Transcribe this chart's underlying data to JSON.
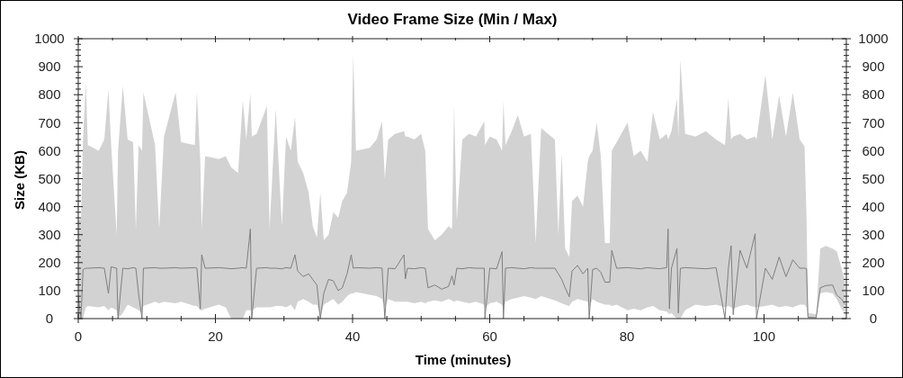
{
  "chart_data": {
    "type": "line",
    "title": "Video Frame Size (Min / Max)",
    "xlabel": "Time (minutes)",
    "ylabel": "Size (KB)",
    "x": [
      0,
      0.4,
      0.7,
      1.1,
      1.4,
      3.0,
      3.8,
      4.4,
      4.8,
      5.6,
      5.8,
      6.5,
      7.2,
      8.0,
      8.4,
      8.8,
      9.3,
      9.5,
      11.2,
      11.8,
      12.5,
      14.2,
      15.0,
      17.0,
      17.3,
      17.8,
      18.0,
      18.5,
      20.5,
      21.5,
      22.3,
      23.3,
      24.0,
      24.5,
      25.1,
      25.3,
      26.0,
      27.5,
      27.9,
      28.8,
      29.7,
      30.3,
      31.0,
      31.6,
      32.0,
      32.8,
      33.6,
      34.2,
      34.8,
      35.3,
      35.8,
      36.5,
      37.2,
      37.9,
      38.5,
      39.2,
      39.8,
      40.1,
      40.5,
      42.5,
      43.5,
      44.3,
      44.7,
      45.2,
      46.2,
      47.5,
      47.7,
      48.0,
      49.0,
      50.0,
      50.6,
      51.0,
      52.0,
      53.0,
      54.0,
      54.5,
      54.8,
      55.2,
      56.0,
      57.0,
      58.0,
      59.2,
      59.3,
      60.0,
      61.0,
      61.8,
      62.0,
      62.3,
      63.2,
      64.1,
      65.0,
      66.0,
      66.7,
      67.5,
      69.5,
      70.0,
      70.5,
      71.0,
      71.6,
      72.0,
      72.8,
      73.6,
      74.3,
      74.5,
      75.0,
      75.6,
      76.2,
      76.8,
      77.5,
      77.8,
      78.5,
      80.1,
      81.0,
      82.0,
      83.0,
      83.8,
      84.8,
      85.8,
      86.0,
      86.2,
      86.5,
      87.3,
      87.5,
      87.8,
      88.5,
      90.0,
      91.5,
      93.0,
      94.3,
      94.8,
      95.2,
      95.5,
      96.5,
      97.5,
      98.7,
      98.9,
      100.2,
      101.2,
      102.2,
      103.2,
      104.2,
      105.2,
      105.9,
      106.2,
      106.4,
      107.6,
      108.2,
      109.0,
      110.0,
      110.6,
      111.3,
      111.8
    ],
    "series": [
      {
        "color": "#7f7f7f",
        "values": [
          80,
          0,
          175,
          180,
          180,
          182,
          180,
          90,
          185,
          180,
          0,
          180,
          178,
          182,
          180,
          89,
          0,
          180,
          182,
          180,
          180,
          182,
          180,
          182,
          180,
          35,
          228,
          180,
          182,
          180,
          178,
          180,
          182,
          180,
          320,
          0,
          180,
          182,
          180,
          180,
          178,
          182,
          180,
          228,
          170,
          150,
          160,
          140,
          120,
          0,
          90,
          140,
          135,
          100,
          110,
          160,
          228,
          180,
          182,
          180,
          182,
          180,
          0,
          180,
          178,
          228,
          142,
          180,
          178,
          182,
          180,
          110,
          120,
          105,
          115,
          153,
          120,
          180,
          178,
          182,
          180,
          180,
          0,
          180,
          178,
          239,
          0,
          180,
          182,
          180,
          178,
          182,
          180,
          180,
          180,
          160,
          140,
          110,
          78,
          170,
          190,
          160,
          180,
          0,
          175,
          180,
          165,
          130,
          130,
          244,
          180,
          182,
          180,
          178,
          182,
          180,
          178,
          182,
          320,
          35,
          180,
          250,
          20,
          180,
          182,
          180,
          178,
          182,
          0,
          180,
          260,
          14,
          244,
          180,
          303,
          0,
          180,
          140,
          220,
          150,
          210,
          180,
          180,
          178,
          5,
          3,
          110,
          118,
          120,
          84,
          70,
          50
        ],
        "lower": [
          0,
          0,
          0,
          40,
          45,
          40,
          45,
          30,
          40,
          30,
          0,
          20,
          50,
          40,
          35,
          30,
          20,
          45,
          60,
          55,
          60,
          55,
          60,
          45,
          45,
          30,
          30,
          35,
          50,
          40,
          0,
          0,
          0,
          30,
          30,
          30,
          40,
          40,
          40,
          45,
          45,
          40,
          50,
          30,
          60,
          70,
          60,
          50,
          50,
          10,
          50,
          60,
          70,
          50,
          60,
          80,
          90,
          90,
          95,
          85,
          80,
          70,
          40,
          70,
          60,
          60,
          60,
          60,
          55,
          60,
          55,
          60,
          65,
          60,
          70,
          65,
          60,
          65,
          60,
          55,
          60,
          50,
          40,
          55,
          60,
          50,
          40,
          60,
          70,
          75,
          80,
          75,
          70,
          80,
          65,
          60,
          55,
          50,
          45,
          60,
          70,
          65,
          60,
          40,
          70,
          60,
          55,
          50,
          50,
          45,
          50,
          30,
          35,
          30,
          40,
          45,
          30,
          25,
          20,
          15,
          20,
          0,
          0,
          0,
          30,
          50,
          45,
          50,
          40,
          45,
          40,
          35,
          45,
          50,
          40,
          40,
          45,
          50,
          40,
          45,
          40,
          50,
          50,
          40,
          0,
          0,
          90,
          95,
          90,
          70,
          35,
          20
        ],
        "upper": [
          350,
          360,
          640,
          845,
          620,
          600,
          640,
          818,
          620,
          300,
          600,
          831,
          640,
          630,
          320,
          620,
          600,
          809,
          620,
          320,
          650,
          809,
          630,
          620,
          809,
          560,
          320,
          580,
          570,
          580,
          540,
          520,
          780,
          640,
          805,
          650,
          660,
          759,
          320,
          748,
          330,
          650,
          600,
          721,
          560,
          520,
          450,
          330,
          290,
          450,
          280,
          300,
          380,
          360,
          420,
          450,
          560,
          941,
          600,
          610,
          640,
          705,
          500,
          640,
          660,
          670,
          650,
          650,
          640,
          660,
          600,
          320,
          280,
          300,
          330,
          320,
          760,
          350,
          640,
          660,
          650,
          705,
          620,
          650,
          640,
          600,
          775,
          620,
          670,
          727,
          650,
          660,
          270,
          680,
          640,
          300,
          590,
          250,
          220,
          420,
          440,
          400,
          560,
          580,
          600,
          700,
          580,
          270,
          270,
          600,
          630,
          700,
          580,
          600,
          560,
          738,
          640,
          660,
          640,
          650,
          670,
          786,
          650,
          925,
          660,
          650,
          670,
          640,
          620,
          786,
          640,
          650,
          660,
          640,
          650,
          640,
          871,
          640,
          797,
          650,
          807,
          640,
          615,
          357,
          20,
          15,
          250,
          260,
          250,
          240,
          180,
          130
        ]
      }
    ],
    "xlim": [
      0,
      112
    ],
    "xticks": [
      0,
      {
        "value": 5,
        "label": null
      },
      {
        "value": 10,
        "label": null
      },
      {
        "value": 15,
        "label": null
      },
      20,
      {
        "value": 25,
        "label": null
      },
      {
        "value": 30,
        "label": null
      },
      {
        "value": 35,
        "label": null
      },
      40,
      {
        "value": 45,
        "label": null
      },
      {
        "value": 50,
        "label": null
      },
      {
        "value": 55,
        "label": null
      },
      60,
      {
        "value": 65,
        "label": null
      },
      {
        "value": 70,
        "label": null
      },
      {
        "value": 75,
        "label": null
      },
      80,
      {
        "value": 85,
        "label": null
      },
      {
        "value": 90,
        "label": null
      },
      {
        "value": 95,
        "label": null
      },
      100,
      {
        "value": 105,
        "label": null
      },
      {
        "value": 110,
        "label": null
      }
    ],
    "ylim": [
      0,
      1000
    ],
    "yticks": [
      0,
      {
        "value": 20,
        "label": null
      },
      {
        "value": 40,
        "label": null
      },
      {
        "value": 60,
        "label": null
      },
      {
        "value": 80,
        "label": null
      },
      100,
      {
        "value": 120,
        "label": null
      },
      {
        "value": 140,
        "label": null
      },
      {
        "value": 160,
        "label": null
      },
      {
        "value": 180,
        "label": null
      },
      200,
      {
        "value": 220,
        "label": null
      },
      {
        "value": 240,
        "label": null
      },
      {
        "value": 260,
        "label": null
      },
      {
        "value": 280,
        "label": null
      },
      300,
      {
        "value": 320,
        "label": null
      },
      {
        "value": 340,
        "label": null
      },
      {
        "value": 360,
        "label": null
      },
      {
        "value": 380,
        "label": null
      },
      400,
      {
        "value": 420,
        "label": null
      },
      {
        "value": 440,
        "label": null
      },
      {
        "value": 460,
        "label": null
      },
      {
        "value": 480,
        "label": null
      },
      500,
      {
        "value": 520,
        "label": null
      },
      {
        "value": 540,
        "label": null
      },
      {
        "value": 560,
        "label": null
      },
      {
        "value": 580,
        "label": null
      },
      600,
      {
        "value": 620,
        "label": null
      },
      {
        "value": 640,
        "label": null
      },
      {
        "value": 660,
        "label": null
      },
      {
        "value": 680,
        "label": null
      },
      700,
      {
        "value": 720,
        "label": null
      },
      {
        "value": 740,
        "label": null
      },
      {
        "value": 760,
        "label": null
      },
      {
        "value": 780,
        "label": null
      },
      800,
      {
        "value": 820,
        "label": null
      },
      {
        "value": 840,
        "label": null
      },
      {
        "value": 860,
        "label": null
      },
      {
        "value": 880,
        "label": null
      },
      900,
      {
        "value": 920,
        "label": null
      },
      {
        "value": 940,
        "label": null
      },
      {
        "value": 960,
        "label": null
      },
      {
        "value": 980,
        "label": null
      },
      1000
    ],
    "y2lim": [
      0,
      1000
    ],
    "y2ticks": [
      0,
      {
        "value": 20,
        "label": null
      },
      {
        "value": 40,
        "label": null
      },
      {
        "value": 60,
        "label": null
      },
      {
        "value": 80,
        "label": null
      },
      100,
      {
        "value": 120,
        "label": null
      },
      {
        "value": 140,
        "label": null
      },
      {
        "value": 160,
        "label": null
      },
      {
        "value": 180,
        "label": null
      },
      200,
      {
        "value": 220,
        "label": null
      },
      {
        "value": 240,
        "label": null
      },
      {
        "value": 260,
        "label": null
      },
      {
        "value": 280,
        "label": null
      },
      300,
      {
        "value": 320,
        "label": null
      },
      {
        "value": 340,
        "label": null
      },
      {
        "value": 360,
        "label": null
      },
      {
        "value": 380,
        "label": null
      },
      400,
      {
        "value": 420,
        "label": null
      },
      {
        "value": 440,
        "label": null
      },
      {
        "value": 460,
        "label": null
      },
      {
        "value": 480,
        "label": null
      },
      500,
      {
        "value": 520,
        "label": null
      },
      {
        "value": 540,
        "label": null
      },
      {
        "value": 560,
        "label": null
      },
      {
        "value": 580,
        "label": null
      },
      600,
      {
        "value": 620,
        "label": null
      },
      {
        "value": 640,
        "label": null
      },
      {
        "value": 660,
        "label": null
      },
      {
        "value": 680,
        "label": null
      },
      700,
      {
        "value": 720,
        "label": null
      },
      {
        "value": 740,
        "label": null
      },
      {
        "value": 760,
        "label": null
      },
      {
        "value": 780,
        "label": null
      },
      800,
      {
        "value": 820,
        "label": null
      },
      {
        "value": 840,
        "label": null
      },
      {
        "value": 860,
        "label": null
      },
      {
        "value": 880,
        "label": null
      },
      900,
      {
        "value": 920,
        "label": null
      },
      {
        "value": 940,
        "label": null
      },
      {
        "value": 960,
        "label": null
      },
      {
        "value": 980,
        "label": null
      },
      1000
    ]
  }
}
